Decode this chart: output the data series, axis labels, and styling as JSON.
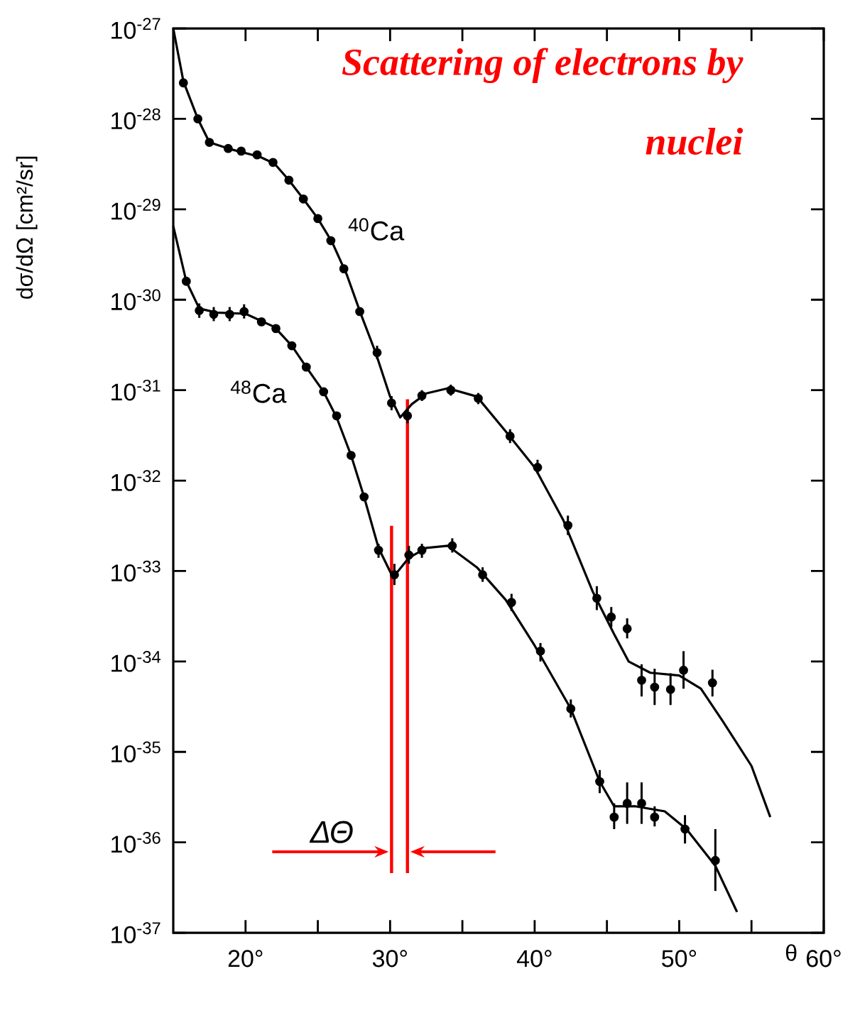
{
  "chart_data": {
    "type": "scatter",
    "title": "Scattering of electrons by nuclei",
    "xlabel": "θ",
    "ylabel": "dσ/dΩ [cm²/sr]",
    "log": "y",
    "xlim": [
      15,
      60
    ],
    "ylim": [
      1e-37,
      1e-27
    ],
    "xticks": [
      {
        "value": 20,
        "label": "20°"
      },
      {
        "value": 25,
        "label": null
      },
      {
        "value": 30,
        "label": "30°"
      },
      {
        "value": 35,
        "label": null
      },
      {
        "value": 40,
        "label": "40°"
      },
      {
        "value": 45,
        "label": null
      },
      {
        "value": 50,
        "label": "50°"
      },
      {
        "value": 55,
        "label": null
      },
      {
        "value": 60,
        "label": "60°"
      }
    ],
    "yticks": [
      {
        "value": 1e-27,
        "label": "10$^{-27}$"
      },
      {
        "value": 1e-28,
        "label": "10$^{-28}$"
      },
      {
        "value": 1e-29,
        "label": "10$^{-29}$"
      },
      {
        "value": 1e-30,
        "label": "10$^{-30}$"
      },
      {
        "value": 1e-31,
        "label": "10$^{-31}$"
      },
      {
        "value": 1e-32,
        "label": "10$^{-32}$"
      },
      {
        "value": 1e-33,
        "label": "10$^{-33}$"
      },
      {
        "value": 1e-34,
        "label": "10$^{-34}$"
      },
      {
        "value": 1e-35,
        "label": "10$^{-35}$"
      },
      {
        "value": 1e-36,
        "label": "10$^{-36}$"
      },
      {
        "value": 1e-37,
        "label": "10$^{-37}$"
      }
    ],
    "series": [
      {
        "type": "line",
        "color": "#000000",
        "marker": "none",
        "x": [
          15,
          15.7,
          16.7,
          17.5,
          19,
          21,
          22,
          23,
          24,
          25,
          26,
          27,
          28,
          29,
          30,
          30.7,
          31.5,
          32.5,
          34,
          36,
          38,
          40,
          42,
          44,
          45.5,
          46.5,
          48,
          50,
          51.5,
          53,
          55,
          56.3
        ],
        "values": [
          1e-27,
          2.6e-28,
          1e-28,
          5.5e-29,
          4.6e-29,
          3.8e-29,
          3.2e-29,
          2.1e-29,
          1.3e-29,
          7.9e-30,
          4.3e-30,
          1.9e-30,
          6.8e-31,
          2.6e-31,
          8.5e-32,
          5e-32,
          7e-32,
          9.2e-32,
          1.05e-31,
          8.5e-32,
          3.5e-32,
          1.4e-32,
          3.6e-33,
          6e-34,
          2e-34,
          1e-34,
          7.5e-35,
          7e-35,
          5e-35,
          2.2e-35,
          7e-36,
          1.9e-36
        ]
      },
      {
        "type": "line",
        "color": "#000000",
        "marker": "none",
        "x": [
          15,
          15.9,
          16.8,
          18,
          20,
          22,
          23.2,
          24.2,
          25.4,
          26.3,
          27.3,
          28.2,
          29.2,
          30.2,
          31.3,
          32.5,
          34,
          36,
          38,
          40,
          42.5,
          44.5,
          45.5,
          47,
          49,
          50.5,
          52.5,
          54
        ],
        "values": [
          6.5e-30,
          1.6e-30,
          8e-31,
          7.2e-31,
          7e-31,
          5e-31,
          3.1e-31,
          1.8e-31,
          9.6e-32,
          5e-32,
          1.9e-32,
          6.6e-33,
          1.8e-33,
          8.5e-34,
          1.4e-33,
          1.8e-33,
          1.9e-33,
          1.1e-33,
          4.8e-34,
          1.5e-34,
          3e-35,
          4.7e-36,
          2.5e-36,
          2.5e-36,
          2.2e-36,
          1.4e-36,
          5.5e-37,
          1.7e-37
        ]
      },
      {
        "name": "$^{40}$Ca",
        "color": "#000000",
        "marker": "circle",
        "x": [
          15.7,
          16.7,
          17.5,
          18.8,
          19.7,
          20.8,
          21.9,
          23.0,
          24.0,
          25.0,
          25.9,
          26.8,
          27.9,
          29.1,
          30.1,
          31.2,
          32.2,
          34.2,
          36.1,
          38.3,
          40.2,
          42.3,
          44.3,
          45.3,
          46.4,
          47.4,
          48.3,
          49.4,
          50.3,
          52.3
        ],
        "values": [
          2.5e-28,
          1e-28,
          5.5e-29,
          4.7e-29,
          4.4e-29,
          4e-29,
          3.3e-29,
          2.1e-29,
          1.3e-29,
          7.9e-30,
          4.5e-30,
          2.2e-30,
          7.4e-31,
          2.6e-31,
          7.2e-32,
          5.2e-32,
          8.7e-32,
          1e-31,
          8.1e-32,
          3.1e-32,
          1.4e-32,
          3.2e-33,
          5e-34,
          3.1e-34,
          2.3e-34,
          6.2e-35,
          5.2e-35,
          4.9e-35,
          8e-35,
          5.8e-35
        ],
        "errors": [
          null,
          null,
          null,
          null,
          null,
          null,
          null,
          null,
          null,
          null,
          null,
          null,
          null,
          [
            2.2e-31,
            3.1e-31
          ],
          [
            6e-32,
            8.6e-32
          ],
          [
            4.3e-32,
            6.2e-32
          ],
          [
            7.6e-32,
            1e-31
          ],
          [
            8.7e-32,
            1.15e-31
          ],
          [
            7e-32,
            9.3e-32
          ],
          [
            2.6e-32,
            3.7e-32
          ],
          [
            1.2e-32,
            1.7e-32
          ],
          [
            2.5e-33,
            4.1e-33
          ],
          [
            3.7e-34,
            6.8e-34
          ],
          [
            2.4e-34,
            4e-34
          ],
          [
            1.8e-34,
            3e-34
          ],
          [
            4.1e-35,
            9.3e-35
          ],
          [
            3.3e-35,
            8.3e-35
          ],
          [
            3.3e-35,
            7.4e-35
          ],
          [
            5e-35,
            1.3e-34
          ],
          [
            4.1e-35,
            8.1e-35
          ]
        ]
      },
      {
        "name": "$^{48}$Ca",
        "color": "#000000",
        "marker": "circle",
        "x": [
          15.9,
          16.8,
          17.8,
          18.9,
          19.9,
          21.1,
          22.1,
          23.2,
          24.2,
          25.4,
          26.3,
          27.3,
          28.2,
          29.2,
          30.3,
          31.3,
          32.2,
          34.3,
          36.4,
          38.4,
          40.4,
          42.5,
          44.5,
          45.5,
          46.4,
          47.4,
          48.3,
          50.4,
          52.5
        ],
        "values": [
          1.6e-30,
          7.6e-31,
          6.9e-31,
          6.9e-31,
          7.4e-31,
          5.7e-31,
          4.8e-31,
          3.1e-31,
          1.8e-31,
          9.6e-32,
          5.2e-32,
          1.9e-32,
          6.6e-33,
          1.7e-33,
          9.1e-34,
          1.5e-33,
          1.7e-33,
          1.9e-33,
          9.1e-34,
          4.5e-34,
          1.3e-34,
          3e-35,
          4.7e-36,
          1.9e-36,
          2.7e-36,
          2.7e-36,
          1.9e-36,
          1.4e-36,
          6.3e-37
        ],
        "errors": [
          null,
          [
            6.3e-31,
            9.1e-31
          ],
          [
            5.8e-31,
            8.3e-31
          ],
          [
            5.8e-31,
            8.3e-31
          ],
          [
            6.2e-31,
            8.9e-31
          ],
          null,
          null,
          null,
          null,
          null,
          null,
          null,
          null,
          [
            1.4e-33,
            2e-33
          ],
          [
            7e-34,
            1.2e-33
          ],
          [
            1.2e-33,
            1.9e-33
          ],
          [
            1.4e-33,
            2e-33
          ],
          [
            1.6e-33,
            2.3e-33
          ],
          [
            7.6e-34,
            1.1e-33
          ],
          [
            3.6e-34,
            5.6e-34
          ],
          [
            1e-34,
            1.6e-34
          ],
          [
            2.4e-35,
            3.8e-35
          ],
          [
            3.5e-36,
            6.3e-36
          ],
          [
            1.4e-36,
            2.7e-36
          ],
          [
            1.6e-36,
            4.6e-36
          ],
          [
            1.6e-36,
            4.6e-36
          ],
          [
            1.5e-36,
            2.5e-36
          ],
          [
            9.7e-37,
            2e-36
          ],
          [
            2.9e-37,
            1.4e-36
          ]
        ]
      }
    ],
    "ref_lines": [
      {
        "axis": "x",
        "value": 30.1,
        "color": "#ff0000"
      },
      {
        "axis": "x",
        "value": 31.2,
        "color": "#ff0000"
      }
    ],
    "annotations": [
      "ΔΘ"
    ]
  }
}
